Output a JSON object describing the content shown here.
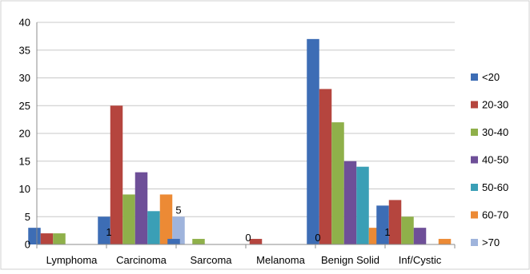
{
  "chart_data": {
    "type": "bar",
    "categories": [
      "Lymphoma",
      "Carcinoma",
      "Sarcoma",
      "Melanoma",
      "Benign Solid",
      "Inf/Cystic"
    ],
    "ylim": [
      0,
      40
    ],
    "yticks": [
      0,
      5,
      10,
      15,
      20,
      25,
      30,
      35,
      40
    ],
    "grid": true,
    "legend_position": "right",
    "series": [
      {
        "name": "<20",
        "color": "#3d6db5",
        "values": [
          3,
          5,
          1,
          0,
          37,
          7
        ]
      },
      {
        "name": "20-30",
        "color": "#b5453e",
        "values": [
          2,
          25,
          0,
          1,
          28,
          8
        ]
      },
      {
        "name": "30-40",
        "color": "#8fb04a",
        "values": [
          2,
          9,
          1,
          0,
          22,
          5
        ]
      },
      {
        "name": "40-50",
        "color": "#6e4f98",
        "values": [
          0,
          13,
          0,
          0,
          15,
          3
        ]
      },
      {
        "name": "50-60",
        "color": "#3a9fb6",
        "values": [
          0,
          6,
          0,
          0,
          14,
          0
        ]
      },
      {
        "name": "60-70",
        "color": "#ec8a35",
        "values": [
          0,
          9,
          0,
          0,
          3,
          1
        ]
      },
      {
        "name": ">70",
        "color": "#9fb4dc",
        "values": [
          1,
          5,
          0,
          0,
          1,
          0
        ]
      }
    ],
    "data_labels": [
      {
        "category": 0,
        "series": 6,
        "text": "1"
      },
      {
        "category": 1,
        "series": 6,
        "text": "5"
      },
      {
        "category": 2,
        "series": 6,
        "text": "0"
      },
      {
        "category": 3,
        "series": 6,
        "text": "0"
      },
      {
        "category": 4,
        "series": 6,
        "text": "1"
      }
    ]
  }
}
